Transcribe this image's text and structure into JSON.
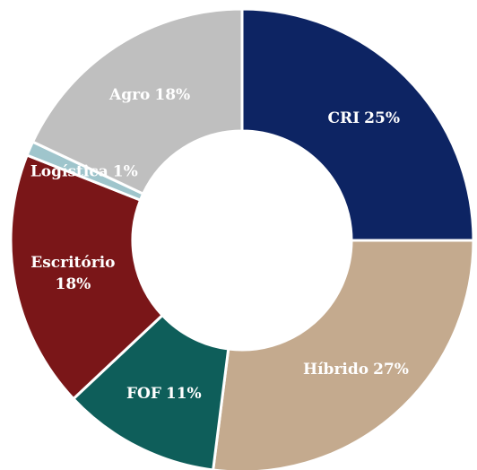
{
  "chart_data": {
    "type": "donut",
    "categories": [
      "CRI",
      "Híbrido",
      "FOF",
      "Escritório",
      "Logística",
      "Agro"
    ],
    "values": [
      25,
      27,
      11,
      18,
      1,
      18
    ],
    "value_labels": [
      "25%",
      "27%",
      "11%",
      "18%",
      "1%",
      "18%"
    ],
    "colors": [
      "#0d2463",
      "#c4aa8e",
      "#0e5e5a",
      "#7a1618",
      "#9fc5cc",
      "#bfbfbf"
    ]
  }
}
